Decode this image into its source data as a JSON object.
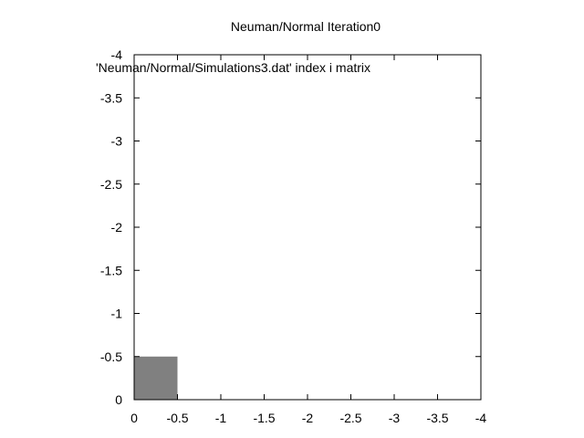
{
  "chart_data": {
    "type": "heatmap",
    "title": "Neuman/Normal Iteration0",
    "legend": [
      "'Neuman/Normal/Simulations3.dat' index i matrix"
    ],
    "xlabel": "",
    "ylabel": "",
    "xlim": [
      0,
      -4
    ],
    "ylim": [
      0,
      -4
    ],
    "xticks": [
      0,
      -0.5,
      -1,
      -1.5,
      -2,
      -2.5,
      -3,
      -3.5,
      -4
    ],
    "xtick_labels": [
      "0",
      "-0.5",
      "-1",
      "-1.5",
      "-2",
      "-2.5",
      "-3",
      "-3.5",
      "-4"
    ],
    "yticks": [
      0,
      -0.5,
      -1,
      -1.5,
      -2,
      -2.5,
      -3,
      -3.5,
      -4
    ],
    "ytick_labels": [
      "0",
      "-0.5",
      "-1",
      "-1.5",
      "-2",
      "-2.5",
      "-3",
      "-3.5",
      "-4"
    ],
    "cells": [
      {
        "x": [
          0,
          -0.5
        ],
        "y": [
          0,
          -0.5
        ],
        "color": "#808080"
      }
    ],
    "grid": false,
    "legend_position": "top-left"
  }
}
